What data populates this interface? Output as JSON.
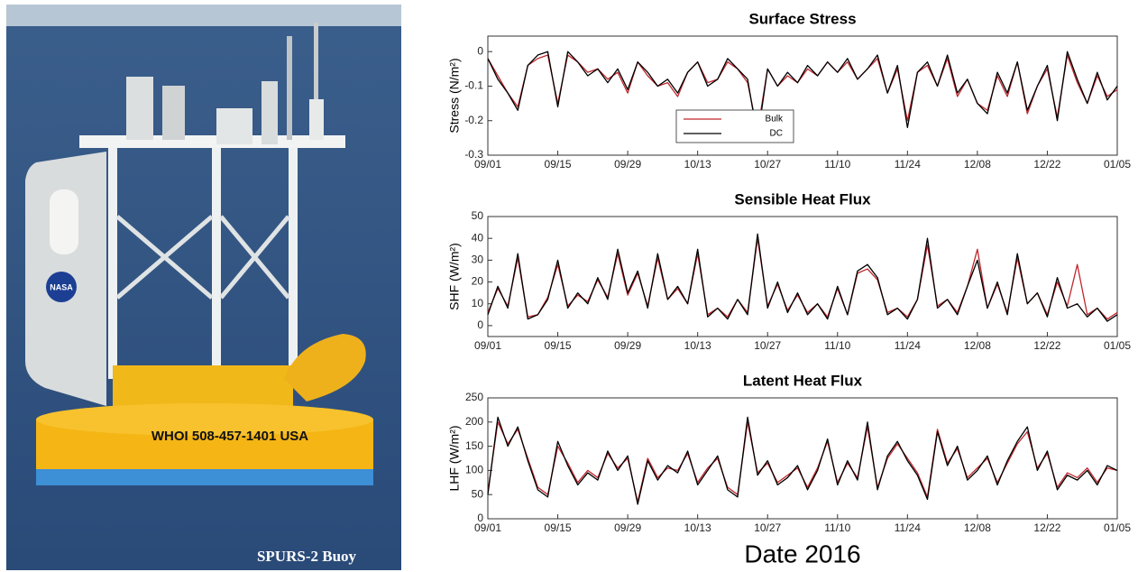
{
  "photo": {
    "caption": "SPURS-2 Buoy",
    "buoy_label": "WHOI 508-457-1401 USA",
    "logo": "NASA"
  },
  "chart_data": [
    {
      "type": "line",
      "title": "Surface Stress",
      "y_label": "Stress (N/m²)",
      "x": [
        "09/01",
        "09/03",
        "09/05",
        "09/07",
        "09/09",
        "09/11",
        "09/13",
        "09/15",
        "09/17",
        "09/19",
        "09/21",
        "09/23",
        "09/25",
        "09/27",
        "09/29",
        "10/01",
        "10/03",
        "10/05",
        "10/07",
        "10/09",
        "10/11",
        "10/13",
        "10/15",
        "10/17",
        "10/19",
        "10/21",
        "10/23",
        "10/25",
        "10/27",
        "10/29",
        "10/31",
        "11/02",
        "11/04",
        "11/06",
        "11/08",
        "11/10",
        "11/12",
        "11/14",
        "11/16",
        "11/18",
        "11/20",
        "11/22",
        "11/24",
        "11/26",
        "11/28",
        "11/30",
        "12/02",
        "12/04",
        "12/06",
        "12/08",
        "12/10",
        "12/12",
        "12/14",
        "12/16",
        "12/18",
        "12/20",
        "12/22",
        "12/24",
        "12/26",
        "12/28",
        "12/30",
        "01/01",
        "01/03",
        "01/05"
      ],
      "xticks": [
        "09/01",
        "09/15",
        "09/29",
        "10/13",
        "10/27",
        "11/10",
        "11/24",
        "12/08",
        "12/22",
        "01/05"
      ],
      "ylim": [
        -0.3,
        0.045
      ],
      "yticks": [
        -0.3,
        -0.2,
        -0.1,
        0
      ],
      "legend": "lower center",
      "series": [
        {
          "name": "Bulk",
          "color": "#c0272d",
          "values": [
            -0.02,
            -0.07,
            -0.12,
            -0.16,
            -0.04,
            -0.02,
            -0.01,
            -0.15,
            -0.01,
            -0.03,
            -0.06,
            -0.05,
            -0.08,
            -0.06,
            -0.12,
            -0.03,
            -0.07,
            -0.1,
            -0.09,
            -0.13,
            -0.06,
            -0.03,
            -0.09,
            -0.08,
            -0.03,
            -0.05,
            -0.09,
            -0.23,
            -0.05,
            -0.1,
            -0.07,
            -0.09,
            -0.05,
            -0.07,
            -0.03,
            -0.06,
            -0.03,
            -0.08,
            -0.05,
            -0.02,
            -0.12,
            -0.05,
            -0.2,
            -0.06,
            -0.04,
            -0.1,
            -0.02,
            -0.13,
            -0.08,
            -0.15,
            -0.17,
            -0.07,
            -0.13,
            -0.03,
            -0.18,
            -0.1,
            -0.05,
            -0.19,
            -0.01,
            -0.09,
            -0.15,
            -0.07,
            -0.13,
            -0.11
          ]
        },
        {
          "name": "DC",
          "color": "#000000",
          "values": [
            -0.02,
            -0.08,
            -0.12,
            -0.17,
            -0.04,
            -0.01,
            0.0,
            -0.16,
            0.0,
            -0.03,
            -0.07,
            -0.05,
            -0.09,
            -0.05,
            -0.11,
            -0.03,
            -0.06,
            -0.1,
            -0.08,
            -0.12,
            -0.06,
            -0.03,
            -0.1,
            -0.08,
            -0.02,
            -0.05,
            -0.08,
            -0.25,
            -0.05,
            -0.1,
            -0.06,
            -0.09,
            -0.04,
            -0.07,
            -0.03,
            -0.06,
            -0.02,
            -0.08,
            -0.05,
            -0.01,
            -0.12,
            -0.04,
            -0.22,
            -0.06,
            -0.03,
            -0.1,
            -0.01,
            -0.12,
            -0.08,
            -0.15,
            -0.18,
            -0.06,
            -0.12,
            -0.03,
            -0.17,
            -0.1,
            -0.04,
            -0.2,
            0.0,
            -0.08,
            -0.15,
            -0.06,
            -0.14,
            -0.1
          ]
        }
      ]
    },
    {
      "type": "line",
      "title": "Sensible Heat Flux",
      "y_label": "SHF (W/m²)",
      "x": [
        "09/01",
        "09/03",
        "09/05",
        "09/07",
        "09/09",
        "09/11",
        "09/13",
        "09/15",
        "09/17",
        "09/19",
        "09/21",
        "09/23",
        "09/25",
        "09/27",
        "09/29",
        "10/01",
        "10/03",
        "10/05",
        "10/07",
        "10/09",
        "10/11",
        "10/13",
        "10/15",
        "10/17",
        "10/19",
        "10/21",
        "10/23",
        "10/25",
        "10/27",
        "10/29",
        "10/31",
        "11/02",
        "11/04",
        "11/06",
        "11/08",
        "11/10",
        "11/12",
        "11/14",
        "11/16",
        "11/18",
        "11/20",
        "11/22",
        "11/24",
        "11/26",
        "11/28",
        "11/30",
        "12/02",
        "12/04",
        "12/06",
        "12/08",
        "12/10",
        "12/12",
        "12/14",
        "12/16",
        "12/18",
        "12/20",
        "12/22",
        "12/24",
        "12/26",
        "12/28",
        "12/30",
        "01/01",
        "01/03",
        "01/05"
      ],
      "xticks": [
        "09/01",
        "09/15",
        "09/29",
        "10/13",
        "10/27",
        "11/10",
        "11/24",
        "12/08",
        "12/22",
        "01/05"
      ],
      "ylim": [
        -5,
        50
      ],
      "yticks": [
        0,
        10,
        20,
        30,
        40,
        50
      ],
      "series": [
        {
          "name": "Bulk",
          "color": "#c0272d",
          "values": [
            6,
            17,
            9,
            31,
            4,
            5,
            13,
            28,
            9,
            14,
            11,
            21,
            13,
            33,
            14,
            24,
            9,
            31,
            12,
            17,
            10,
            33,
            5,
            8,
            4,
            12,
            6,
            40,
            9,
            19,
            7,
            14,
            6,
            10,
            4,
            17,
            5,
            24,
            26,
            21,
            6,
            8,
            4,
            12,
            37,
            9,
            12,
            6,
            18,
            35,
            8,
            19,
            6,
            31,
            10,
            15,
            5,
            20,
            9,
            28,
            5,
            8,
            3,
            6
          ]
        },
        {
          "name": "DC",
          "color": "#000000",
          "values": [
            5,
            18,
            8,
            33,
            3,
            5,
            12,
            30,
            8,
            15,
            10,
            22,
            12,
            35,
            15,
            25,
            8,
            33,
            12,
            18,
            10,
            35,
            4,
            8,
            3,
            12,
            5,
            42,
            8,
            20,
            6,
            15,
            5,
            10,
            3,
            18,
            5,
            25,
            28,
            22,
            5,
            8,
            3,
            12,
            40,
            8,
            12,
            5,
            18,
            30,
            8,
            20,
            5,
            33,
            10,
            15,
            4,
            22,
            8,
            10,
            4,
            8,
            2,
            5
          ]
        }
      ]
    },
    {
      "type": "line",
      "title": "Latent Heat Flux",
      "y_label": "LHF (W/m²)",
      "x_label": "Date 2016",
      "x": [
        "09/01",
        "09/03",
        "09/05",
        "09/07",
        "09/09",
        "09/11",
        "09/13",
        "09/15",
        "09/17",
        "09/19",
        "09/21",
        "09/23",
        "09/25",
        "09/27",
        "09/29",
        "10/01",
        "10/03",
        "10/05",
        "10/07",
        "10/09",
        "10/11",
        "10/13",
        "10/15",
        "10/17",
        "10/19",
        "10/21",
        "10/23",
        "10/25",
        "10/27",
        "10/29",
        "10/31",
        "11/02",
        "11/04",
        "11/06",
        "11/08",
        "11/10",
        "11/12",
        "11/14",
        "11/16",
        "11/18",
        "11/20",
        "11/22",
        "11/24",
        "11/26",
        "11/28",
        "11/30",
        "12/02",
        "12/04",
        "12/06",
        "12/08",
        "12/10",
        "12/12",
        "12/14",
        "12/16",
        "12/18",
        "12/20",
        "12/22",
        "12/24",
        "12/26",
        "12/28",
        "12/30",
        "01/01",
        "01/03",
        "01/05"
      ],
      "xticks": [
        "09/01",
        "09/15",
        "09/29",
        "10/13",
        "10/27",
        "11/10",
        "11/24",
        "12/08",
        "12/22",
        "01/05"
      ],
      "ylim": [
        0,
        250
      ],
      "yticks": [
        0,
        50,
        100,
        150,
        200,
        250
      ],
      "series": [
        {
          "name": "Bulk",
          "color": "#c0272d",
          "values": [
            55,
            200,
            155,
            185,
            125,
            65,
            50,
            150,
            115,
            75,
            100,
            85,
            135,
            105,
            125,
            35,
            125,
            85,
            105,
            100,
            135,
            75,
            105,
            125,
            65,
            50,
            200,
            95,
            115,
            75,
            90,
            105,
            65,
            105,
            160,
            75,
            115,
            85,
            190,
            65,
            125,
            155,
            125,
            95,
            45,
            185,
            115,
            145,
            85,
            105,
            125,
            75,
            115,
            155,
            180,
            105,
            135,
            65,
            95,
            85,
            105,
            75,
            105,
            100
          ]
        },
        {
          "name": "DC",
          "color": "#000000",
          "values": [
            50,
            210,
            150,
            190,
            120,
            60,
            45,
            160,
            110,
            70,
            95,
            80,
            140,
            100,
            130,
            30,
            120,
            80,
            110,
            95,
            140,
            70,
            100,
            130,
            60,
            45,
            210,
            90,
            120,
            70,
            85,
            110,
            60,
            100,
            165,
            70,
            120,
            80,
            200,
            60,
            130,
            160,
            120,
            90,
            40,
            180,
            110,
            150,
            80,
            100,
            130,
            70,
            120,
            160,
            190,
            100,
            140,
            60,
            90,
            80,
            100,
            70,
            110,
            100
          ]
        }
      ]
    }
  ]
}
